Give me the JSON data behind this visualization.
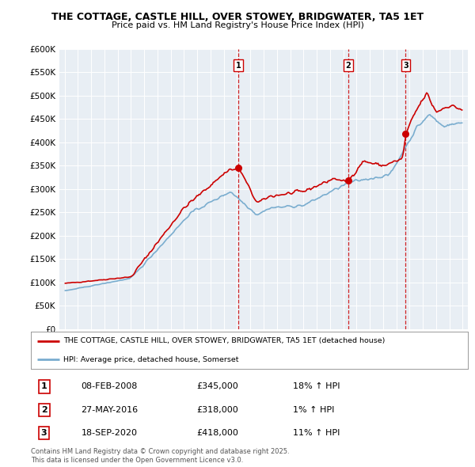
{
  "title": "THE COTTAGE, CASTLE HILL, OVER STOWEY, BRIDGWATER, TA5 1ET",
  "subtitle": "Price paid vs. HM Land Registry's House Price Index (HPI)",
  "property_label": "THE COTTAGE, CASTLE HILL, OVER STOWEY, BRIDGWATER, TA5 1ET (detached house)",
  "hpi_label": "HPI: Average price, detached house, Somerset",
  "transactions": [
    {
      "num": 1,
      "date": "08-FEB-2008",
      "date_val": 2008.1,
      "price": 345000,
      "hpi_diff": "18% ↑ HPI"
    },
    {
      "num": 2,
      "date": "27-MAY-2016",
      "date_val": 2016.37,
      "price": 318000,
      "hpi_diff": "1% ↑ HPI"
    },
    {
      "num": 3,
      "date": "18-SEP-2020",
      "date_val": 2020.71,
      "price": 418000,
      "hpi_diff": "11% ↑ HPI"
    }
  ],
  "property_color": "#cc0000",
  "hpi_color": "#7aadcf",
  "vline_color": "#cc0000",
  "background_color": "#e8eef4",
  "ylim": [
    0,
    600000
  ],
  "yticks": [
    0,
    50000,
    100000,
    150000,
    200000,
    250000,
    300000,
    350000,
    400000,
    450000,
    500000,
    550000,
    600000
  ],
  "xlim_left": 1994.6,
  "xlim_right": 2025.4,
  "footnote": "Contains HM Land Registry data © Crown copyright and database right 2025.\nThis data is licensed under the Open Government Licence v3.0."
}
